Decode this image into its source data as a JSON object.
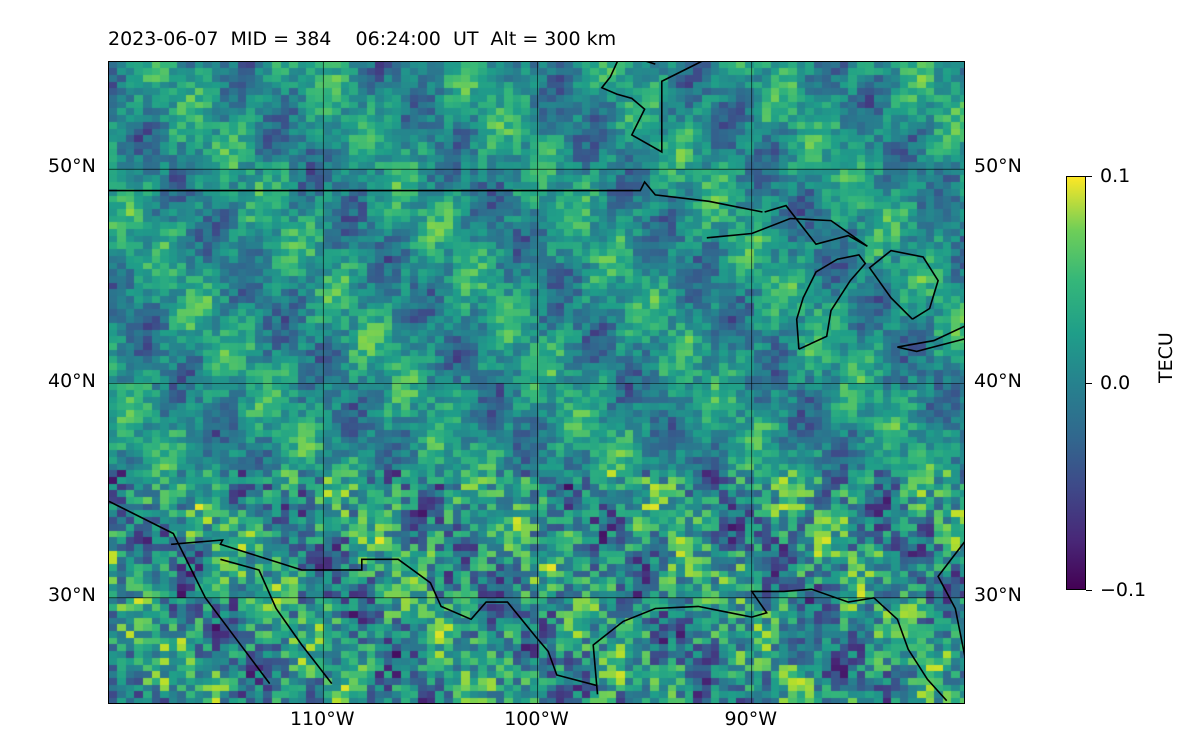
{
  "map": {
    "title": "2023-06-07  MID = 384    06:24:00  UT  Alt = 300 km",
    "extent": {
      "lon_min": -120,
      "lon_max": -80,
      "lat_min": 25,
      "lat_max": 55
    },
    "gridlines": {
      "lons": [
        -110,
        -100,
        -90
      ],
      "lats": [
        30,
        40,
        50
      ]
    },
    "lat_labels": [
      {
        "lat": 50,
        "text": "50°N"
      },
      {
        "lat": 40,
        "text": "40°N"
      },
      {
        "lat": 30,
        "text": "30°N"
      }
    ],
    "lon_labels": [
      {
        "lon": -110,
        "text": "110°W"
      },
      {
        "lon": -100,
        "text": "100°W"
      },
      {
        "lon": -90,
        "text": "90°W"
      }
    ],
    "colormap": "viridis",
    "coastline_color": "#000000"
  },
  "colorbar": {
    "label": "TECU",
    "vmin": -0.1,
    "vmax": 0.1,
    "ticks": [
      {
        "value": 0.1,
        "text": "0.1"
      },
      {
        "value": 0.0,
        "text": "0.0"
      },
      {
        "value": -0.1,
        "text": "−0.1"
      }
    ]
  }
}
